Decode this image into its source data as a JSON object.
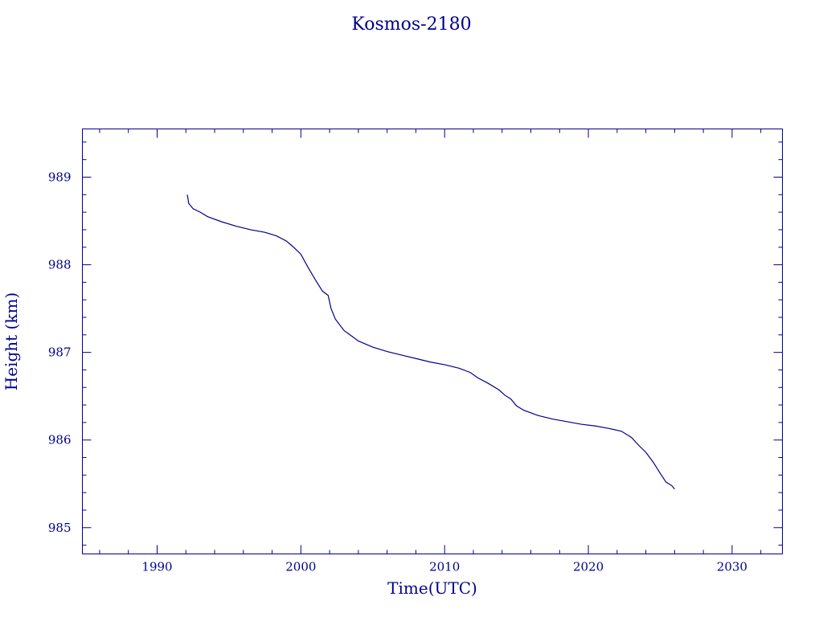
{
  "chart_data": {
    "type": "line",
    "title": "Kosmos-2180",
    "xlabel": "Time(UTC)",
    "ylabel": "Height (km)",
    "xlim": [
      1984.8,
      2033.5
    ],
    "ylim": [
      984.7,
      989.55
    ],
    "x_ticks": [
      1990,
      2000,
      2010,
      2020,
      2030
    ],
    "y_ticks": [
      985,
      986,
      987,
      988,
      989
    ],
    "x_minor_step": 2,
    "y_minor_step": 0.2,
    "grid": false,
    "series": [
      {
        "color": "#00008b",
        "x": [
          1992.1,
          1992.2,
          1992.5,
          1993.0,
          1993.5,
          1994.5,
          1995.5,
          1996.5,
          1997.5,
          1998.3,
          1999.0,
          1999.5,
          2000.0,
          2000.5,
          2001.0,
          2001.5,
          2001.9,
          2002.1,
          2002.4,
          2003.0,
          2003.5,
          2004.0,
          2005.0,
          2006.0,
          2007.0,
          2008.0,
          2009.0,
          2010.0,
          2011.0,
          2011.8,
          2012.3,
          2013.0,
          2013.8,
          2014.2,
          2014.6,
          2015.0,
          2015.5,
          2016.5,
          2017.5,
          2018.5,
          2019.5,
          2020.5,
          2021.5,
          2022.3,
          2023.0,
          2023.5,
          2024.0,
          2024.5,
          2025.0,
          2025.4,
          2025.8,
          2026.0
        ],
        "y": [
          988.8,
          988.7,
          988.64,
          988.6,
          988.55,
          988.49,
          988.44,
          988.4,
          988.37,
          988.33,
          988.27,
          988.2,
          988.12,
          987.97,
          987.83,
          987.7,
          987.65,
          987.5,
          987.38,
          987.25,
          987.19,
          987.13,
          987.06,
          987.01,
          986.97,
          986.93,
          986.89,
          986.86,
          986.82,
          986.77,
          986.71,
          986.65,
          986.57,
          986.51,
          986.47,
          986.39,
          986.34,
          986.28,
          986.24,
          986.21,
          986.18,
          986.16,
          986.13,
          986.1,
          986.03,
          985.94,
          985.86,
          985.75,
          985.62,
          985.52,
          985.48,
          985.44
        ]
      }
    ]
  }
}
